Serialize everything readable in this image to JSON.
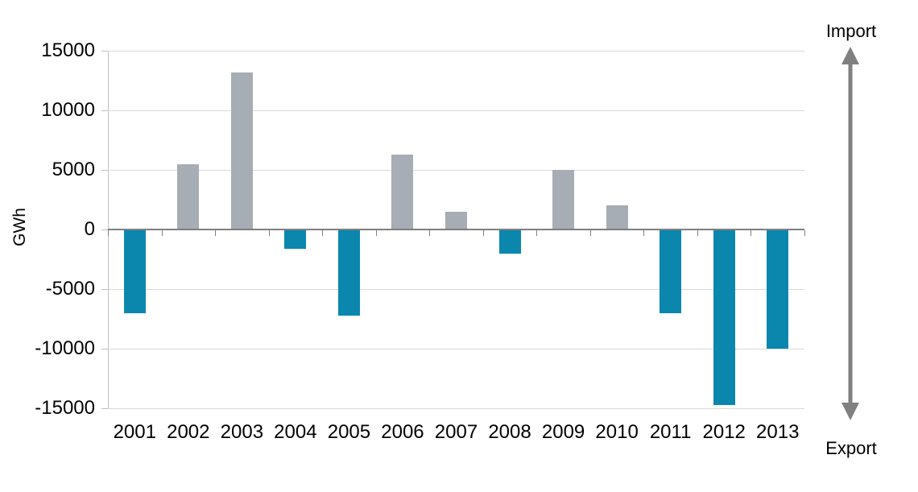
{
  "chart_data": {
    "type": "bar",
    "title": "",
    "xlabel": "",
    "ylabel": "GWh",
    "categories": [
      "2001",
      "2002",
      "2003",
      "2004",
      "2005",
      "2006",
      "2007",
      "2008",
      "2009",
      "2010",
      "2011",
      "2012",
      "2013"
    ],
    "values": [
      -7000,
      5500,
      13200,
      -1600,
      -7200,
      6300,
      1500,
      -2000,
      5000,
      2000,
      -7000,
      -14700,
      -10000
    ],
    "ylim": [
      -15000,
      15000
    ],
    "yticks": [
      15000,
      10000,
      5000,
      0,
      -5000,
      -10000,
      -15000
    ],
    "grid": "horizontal",
    "bar_semantics": {
      "positive": "Import",
      "negative": "Export"
    },
    "annotations": {
      "import_label": "Import",
      "export_label": "Export"
    },
    "colors": {
      "positive_bar": "#a6adb4",
      "negative_bar": "#0b87ae",
      "gridline": "#d9d9d9",
      "zero_line": "#7f7f7f",
      "axis_line": "#bfbfbf",
      "arrow": "#808080",
      "text": "#000000"
    }
  }
}
